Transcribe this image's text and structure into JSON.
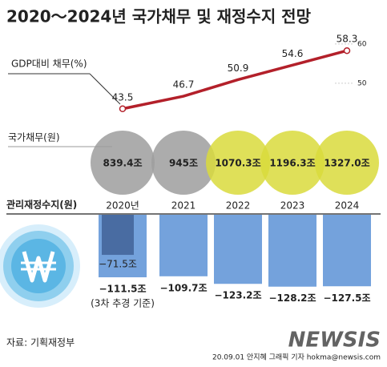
{
  "title": "2020～2024년 국가채무 및 재정수지 전망",
  "chart_data": [
    {
      "type": "line",
      "label": "GDP대비 채무(%)",
      "categories": [
        "2020년",
        "2021",
        "2022",
        "2023",
        "2024"
      ],
      "values": [
        43.5,
        46.7,
        50.9,
        54.6,
        58.3
      ],
      "color": "#b3202a",
      "ylim": [
        41,
        61
      ],
      "yticks": [
        50,
        60
      ]
    },
    {
      "type": "bubble",
      "label": "국가채무(원)",
      "values": [
        839.4,
        945,
        1070.3,
        1196.3,
        1327.0
      ],
      "value_labels": [
        "839.4조",
        "945조",
        "1070.3조",
        "1196.3조",
        "1327.0조"
      ],
      "colors": [
        "#9d9d9d",
        "#9d9d9d",
        "#d9da3c",
        "#d9da3c",
        "#d9da3c"
      ]
    },
    {
      "type": "bar",
      "label": "관리재정수지(원)",
      "values": [
        -111.5,
        -109.7,
        -123.2,
        -128.2,
        -127.5
      ],
      "value_labels": [
        "−111.5조",
        "−109.7조",
        "−123.2조",
        "−128.2조",
        "−127.5조"
      ],
      "color": "#74a2dc",
      "ylim": [
        -130,
        0
      ],
      "inner": {
        "values": [
          -71.5
        ],
        "value_labels": [
          "−71.5조"
        ],
        "color": "#3f5f93"
      },
      "annotation": "(3차 추경 기준)"
    }
  ],
  "source": "자료: 기획재정부",
  "credit": "20.09.01 안지혜 그래픽 기자 hokma@newsis.com",
  "watermark": "NEWSIS"
}
